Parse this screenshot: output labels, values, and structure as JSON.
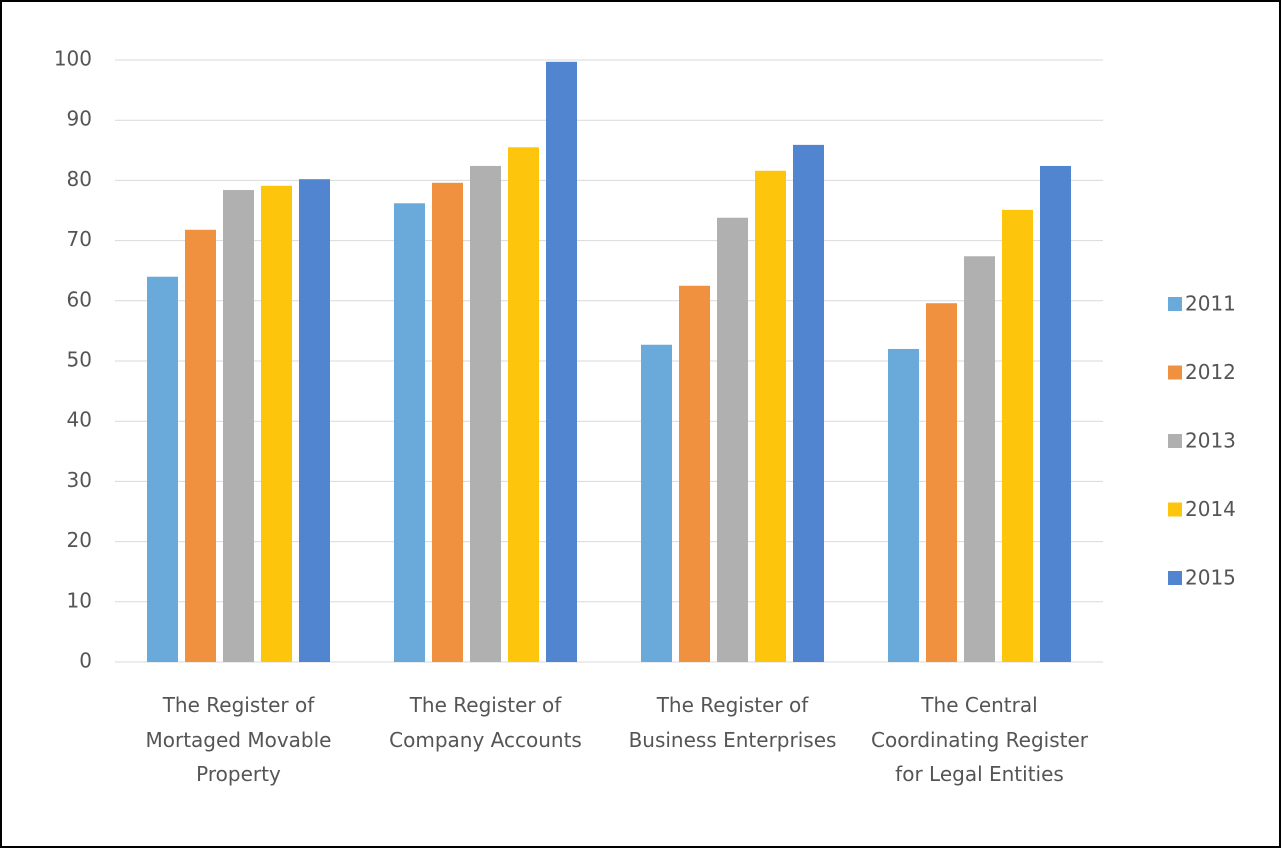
{
  "chart_data": {
    "type": "bar",
    "categories": [
      "The Register of Mortaged Movable Property",
      "The Register of Company Accounts",
      "The Register of Business Enterprises",
      "The Central Coordinating Register for Legal Entities"
    ],
    "series": [
      {
        "name": "2011",
        "color": "#6aaadb",
        "values": [
          64.0,
          76.2,
          52.7,
          52.0
        ]
      },
      {
        "name": "2012",
        "color": "#f0913f",
        "values": [
          71.8,
          79.6,
          62.5,
          59.6
        ]
      },
      {
        "name": "2013",
        "color": "#b0b0b0",
        "values": [
          78.4,
          82.4,
          73.8,
          67.4
        ]
      },
      {
        "name": "2014",
        "color": "#fdc50c",
        "values": [
          79.1,
          85.5,
          81.6,
          75.1
        ]
      },
      {
        "name": "2015",
        "color": "#5185cf",
        "values": [
          80.2,
          99.7,
          85.9,
          82.4
        ]
      }
    ],
    "ylim": [
      0,
      100
    ],
    "yticks": [
      0,
      10,
      20,
      30,
      40,
      50,
      60,
      70,
      80,
      90,
      100
    ],
    "grid": true,
    "legend": "right"
  }
}
